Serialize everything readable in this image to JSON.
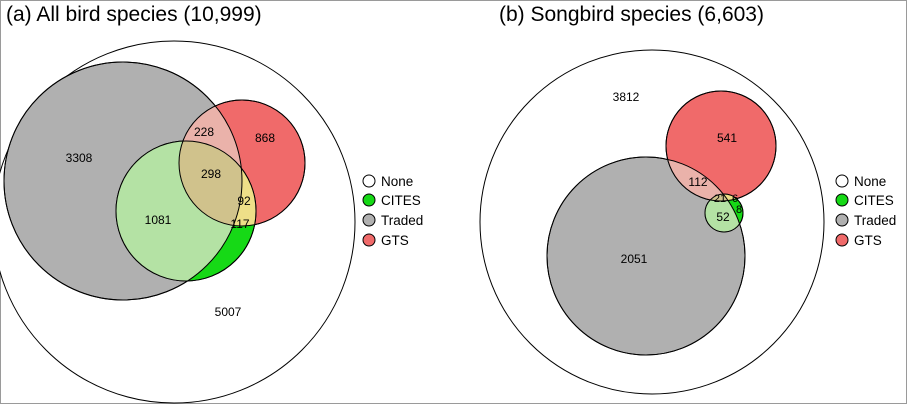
{
  "colors": {
    "none": "#ffffff",
    "cites": "#16d916",
    "traded": "#b0b0b0",
    "gts": "#f06a6a",
    "outline": "#000000"
  },
  "panel_a": {
    "title": "(a) All bird species (10,999)",
    "counts": {
      "none": "5007",
      "traded_only": "3308",
      "gts_only": "868",
      "traded_gts": "228",
      "all_three": "298",
      "traded_cites": "1081",
      "gts_cites": "92",
      "cites_only": "117"
    },
    "legend": [
      {
        "label": "None",
        "color_key": "none"
      },
      {
        "label": "CITES",
        "color_key": "cites"
      },
      {
        "label": "Traded",
        "color_key": "traded"
      },
      {
        "label": "GTS",
        "color_key": "gts"
      }
    ]
  },
  "panel_b": {
    "title": "(b) Songbird species (6,603)",
    "counts": {
      "none": "3812",
      "gts_only": "541",
      "traded_gts": "112",
      "all_three": "21",
      "gts_cites": "6",
      "cites_only": "8",
      "traded_cites": "52",
      "traded_only": "2051"
    },
    "legend": [
      {
        "label": "None",
        "color_key": "none"
      },
      {
        "label": "CITES",
        "color_key": "cites"
      },
      {
        "label": "Traded",
        "color_key": "traded"
      },
      {
        "label": "GTS",
        "color_key": "gts"
      }
    ]
  }
}
